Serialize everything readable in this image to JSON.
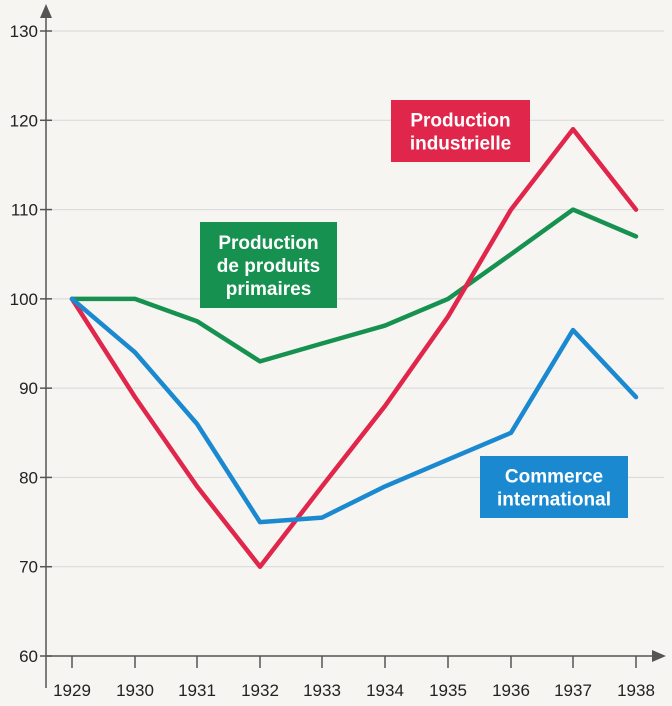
{
  "chart_data": {
    "type": "line",
    "x": [
      "1929",
      "1930",
      "1931",
      "1932",
      "1933",
      "1934",
      "1935",
      "1936",
      "1937",
      "1938"
    ],
    "ylim": [
      60,
      130
    ],
    "yticks": [
      "60",
      "70",
      "80",
      "90",
      "100",
      "110",
      "120",
      "130"
    ],
    "grid": true,
    "series": [
      {
        "name": "Production de produits primaires",
        "label_lines": [
          "Production",
          "de produits",
          "primaires"
        ],
        "color": "#16914f",
        "values": [
          100,
          100,
          97.5,
          93,
          95,
          97,
          100,
          105,
          110,
          107
        ]
      },
      {
        "name": "Production industrielle",
        "label_lines": [
          "Production",
          "industrielle"
        ],
        "color": "#e0264a",
        "values": [
          100,
          89,
          79,
          70,
          79,
          88,
          98,
          110,
          119,
          110
        ]
      },
      {
        "name": "Commerce international",
        "label_lines": [
          "Commerce",
          "international"
        ],
        "color": "#1b89d0",
        "values": [
          100,
          94,
          86,
          75,
          75.5,
          79,
          82,
          85,
          96.5,
          89
        ]
      }
    ]
  }
}
